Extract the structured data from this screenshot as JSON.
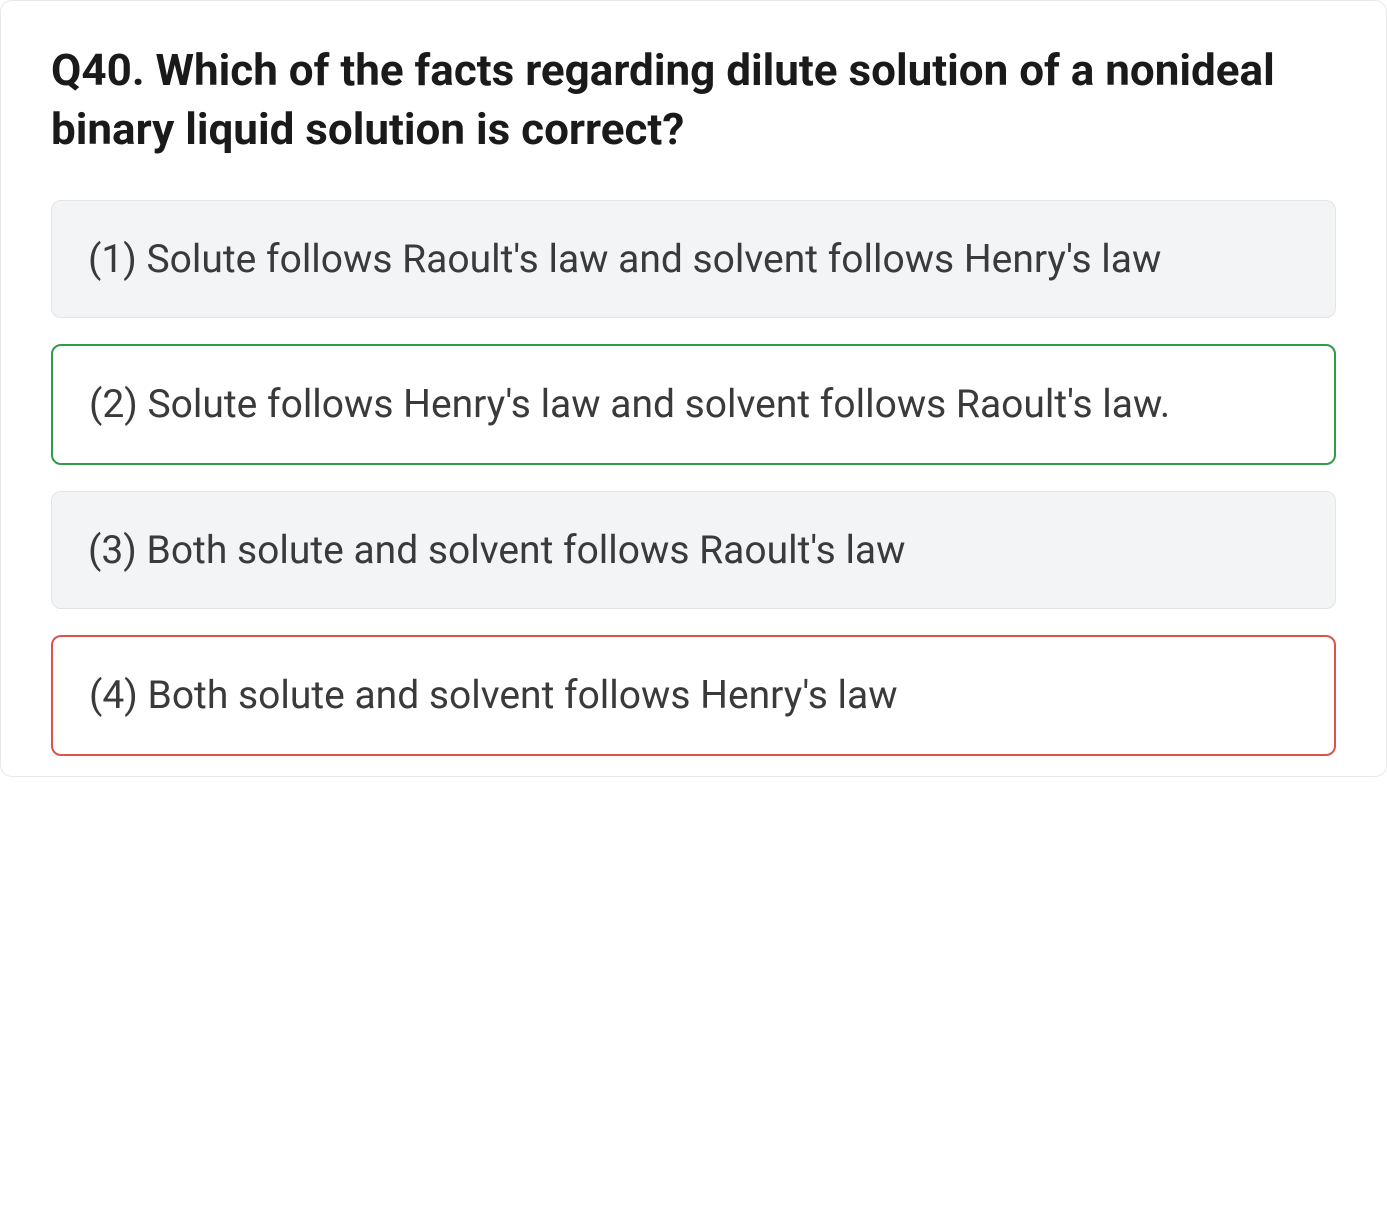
{
  "question": {
    "title": "Q40. Which of the facts regarding dilute solution of a nonideal binary liquid solution is correct?",
    "title_fontsize": 44,
    "title_fontweight": 700,
    "title_color": "#1a1a1a"
  },
  "options": [
    {
      "text": "(1) Solute follows Raoult's law and solvent follows Henry's law",
      "state": "default",
      "background_color": "#f3f4f6",
      "border_color": "#e2e4e8",
      "text_color": "#3a3a3a"
    },
    {
      "text": "(2) Solute follows Henry's law and solvent follows Raoult's law.",
      "state": "correct",
      "background_color": "#ffffff",
      "border_color": "#2e9c4a",
      "text_color": "#3a3a3a"
    },
    {
      "text": "(3) Both solute and solvent follows Raoult's law",
      "state": "default",
      "background_color": "#f3f4f6",
      "border_color": "#e2e4e8",
      "text_color": "#3a3a3a"
    },
    {
      "text": "(4) Both solute and solvent follows Henry's law",
      "state": "incorrect",
      "background_color": "#ffffff",
      "border_color": "#d9534f",
      "text_color": "#3a3a3a"
    }
  ],
  "styling": {
    "card_background": "#ffffff",
    "card_border": "#e8e8e8",
    "card_border_radius": 12,
    "option_fontsize": 39,
    "option_border_radius": 10,
    "option_gap": 26
  }
}
